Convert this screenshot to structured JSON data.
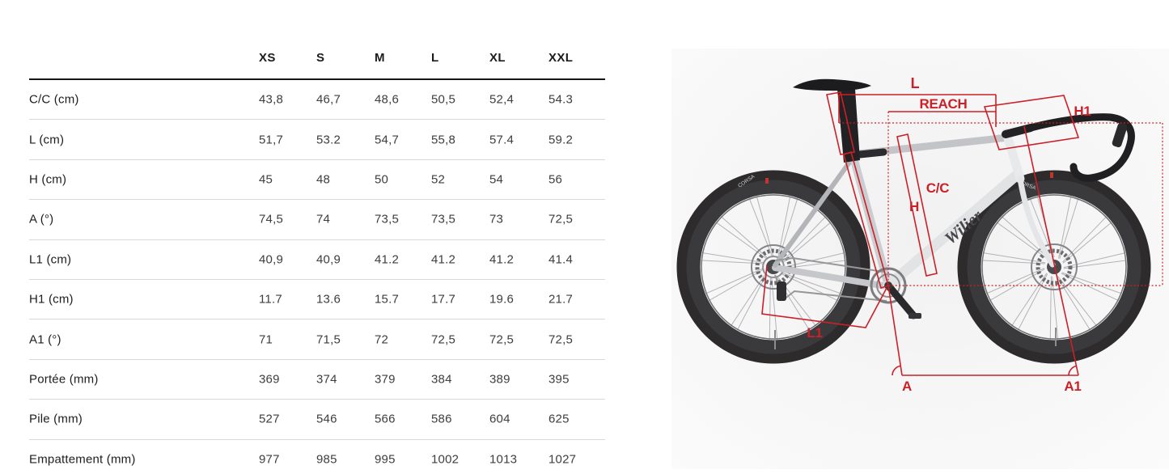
{
  "table": {
    "size_headers": [
      "XS",
      "S",
      "M",
      "L",
      "XL",
      "XXL"
    ],
    "rows": [
      {
        "label": "C/C (cm)",
        "values": [
          "43,8",
          "46,7",
          "48,6",
          "50,5",
          "52,4",
          "54.3"
        ]
      },
      {
        "label": "L (cm)",
        "values": [
          "51,7",
          "53.2",
          "54,7",
          "55,8",
          "57.4",
          "59.2"
        ]
      },
      {
        "label": "H (cm)",
        "values": [
          "45",
          "48",
          "50",
          "52",
          "54",
          "56"
        ]
      },
      {
        "label": "A (°)",
        "values": [
          "74,5",
          "74",
          "73,5",
          "73,5",
          "73",
          "72,5"
        ]
      },
      {
        "label": "L1 (cm)",
        "values": [
          "40,9",
          "40,9",
          "41.2",
          "41.2",
          "41.2",
          "41.4"
        ]
      },
      {
        "label": "H1 (cm)",
        "values": [
          "11.7",
          "13.6",
          "15.7",
          "17.7",
          "19.6",
          "21.7"
        ]
      },
      {
        "label": "A1 (°)",
        "values": [
          "71",
          "71,5",
          "72",
          "72,5",
          "72,5",
          "72,5"
        ]
      },
      {
        "label": "Portée (mm)",
        "values": [
          "369",
          "374",
          "379",
          "384",
          "389",
          "395"
        ]
      },
      {
        "label": "Pile (mm)",
        "values": [
          "527",
          "546",
          "566",
          "586",
          "604",
          "625"
        ]
      },
      {
        "label": "Empattement (mm)",
        "values": [
          "977",
          "985",
          "995",
          "1002",
          "1013",
          "1027"
        ]
      }
    ]
  },
  "diagram": {
    "annotation_color": "#cb2027",
    "labels": {
      "l": "L",
      "reach": "REACH",
      "h1": "H1",
      "h": "H",
      "cc": "C/C",
      "l1": "L1",
      "a": "A",
      "a1": "A1"
    },
    "frame_logo": "Wilier",
    "tire_label": "CORSA"
  }
}
